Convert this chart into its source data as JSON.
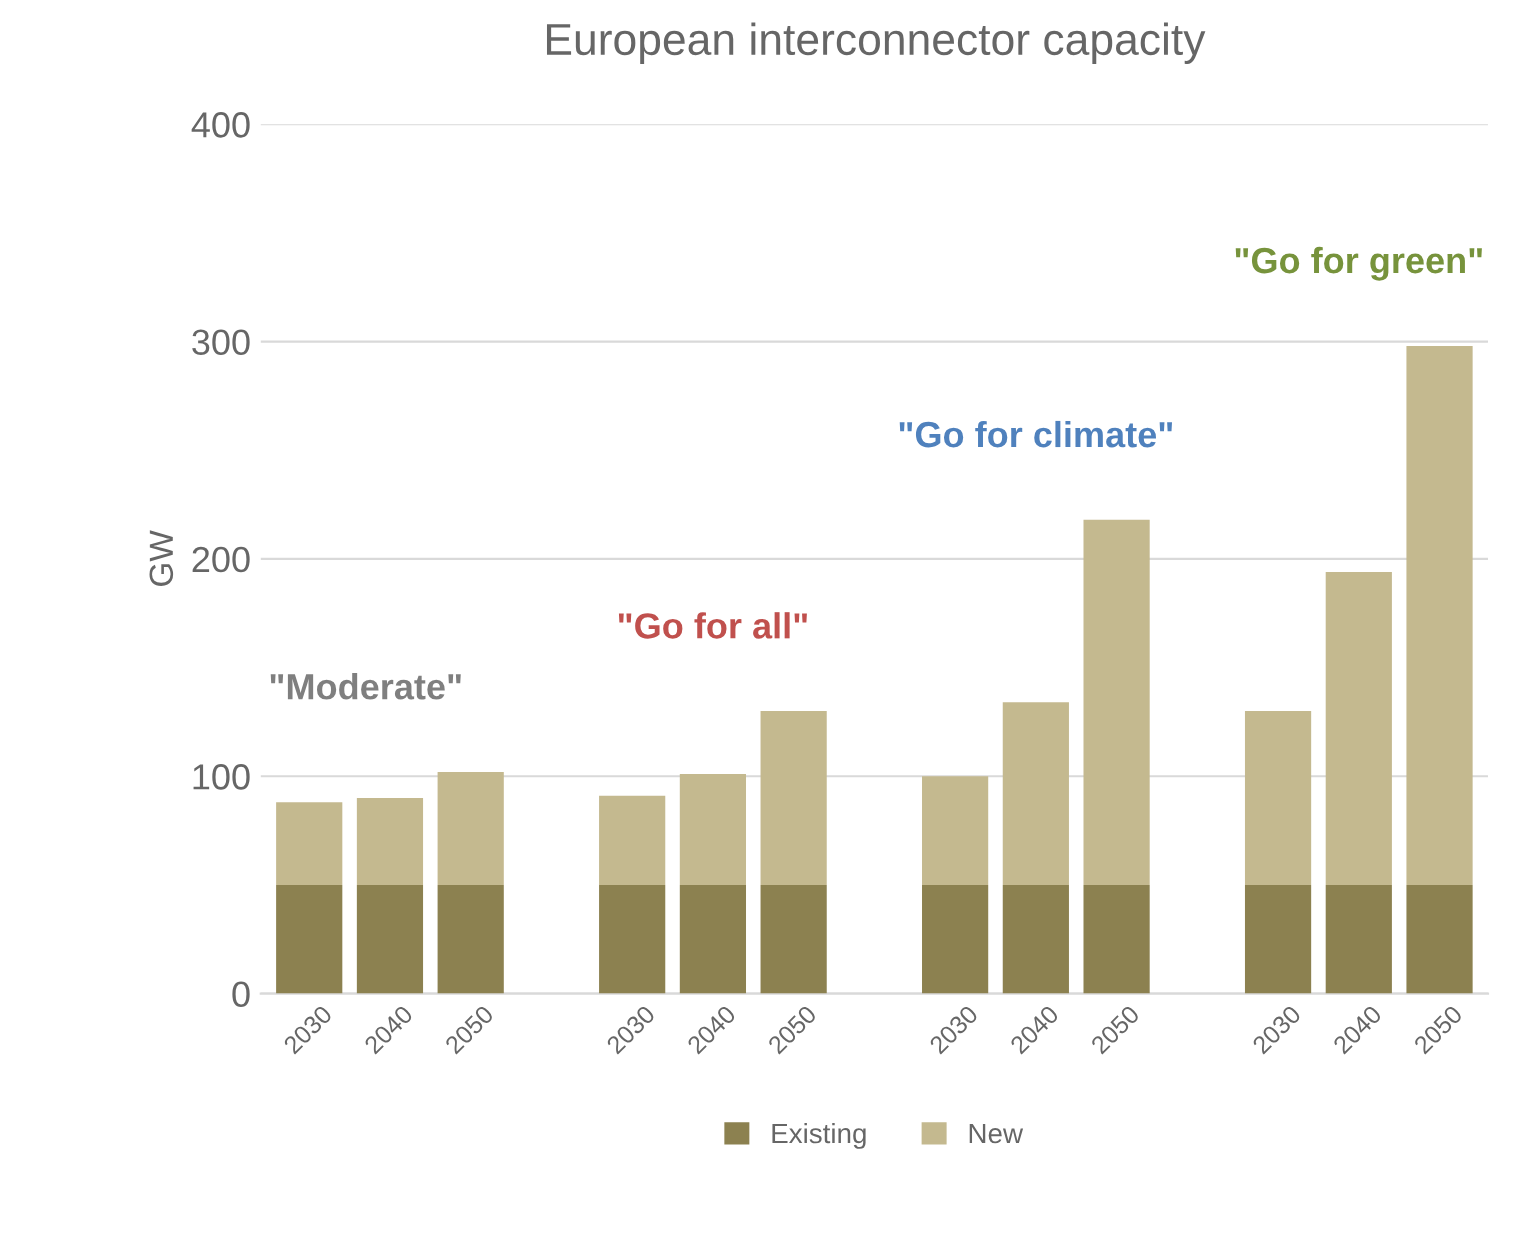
{
  "chart_data": {
    "type": "bar",
    "title": "European interconnector capacity",
    "ylabel": "GW",
    "categories": [
      "2030",
      "2040",
      "2050",
      null,
      "2030",
      "2040",
      "2050",
      null,
      "2030",
      "2040",
      "2050",
      null,
      "2030",
      "2040",
      "2050"
    ],
    "stacked": true,
    "series": [
      {
        "name": "Existing",
        "color": "#8c8150",
        "values": [
          50,
          50,
          50,
          null,
          50,
          50,
          50,
          null,
          50,
          50,
          50,
          null,
          50,
          50,
          50
        ]
      },
      {
        "name": "New",
        "color": "#c4b98f",
        "values": [
          38,
          40,
          52,
          null,
          41,
          51,
          80,
          null,
          50,
          84,
          168,
          null,
          80,
          144,
          248
        ]
      }
    ],
    "annotations": [
      "\"Moderate\"",
      "\"Go for all\"",
      "\"Go for climate\"",
      "\"Go for green\""
    ],
    "ylim": [
      0,
      400
    ],
    "yticks": [
      0,
      100,
      200,
      300,
      400
    ],
    "grid": "y",
    "legend": "bottom"
  }
}
